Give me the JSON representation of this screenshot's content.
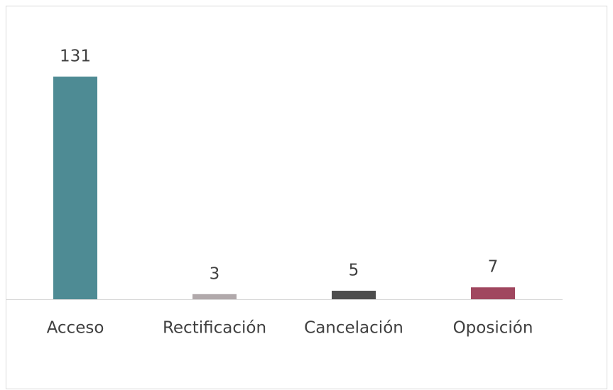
{
  "chart_data": {
    "type": "bar",
    "categories": [
      "Acceso",
      "Rectificación",
      "Cancelación",
      "Oposición"
    ],
    "values": [
      131,
      3,
      5,
      7
    ],
    "colors": [
      "#4e8b94",
      "#b1a9ab",
      "#4d4d4d",
      "#a0475f"
    ]
  }
}
